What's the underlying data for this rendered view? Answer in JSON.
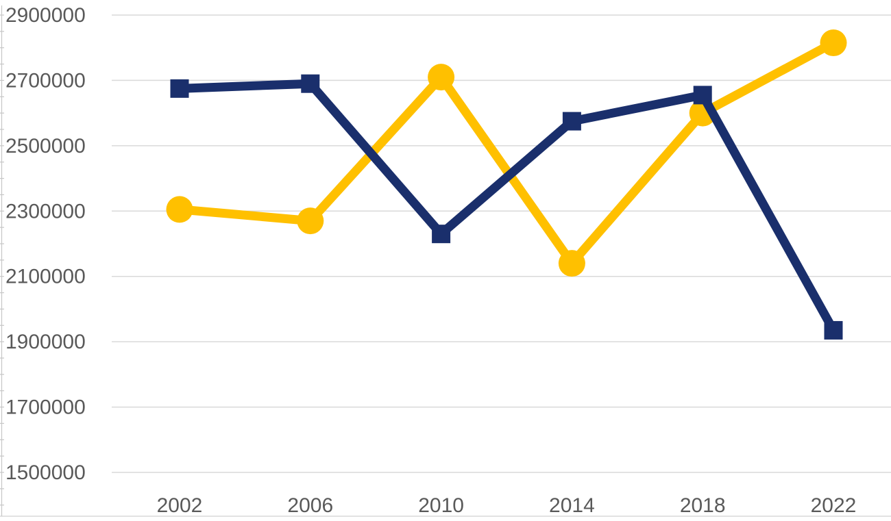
{
  "chart_data": {
    "type": "line",
    "title": "",
    "xlabel": "",
    "ylabel": "",
    "categories": [
      "2002",
      "2006",
      "2010",
      "2014",
      "2018",
      "2022"
    ],
    "series": [
      {
        "name": "gold",
        "color": "#FFC000",
        "marker": "circle",
        "line_width": 13,
        "values": [
          2305000,
          2270000,
          2710000,
          2140000,
          2600000,
          2815000
        ]
      },
      {
        "name": "navy",
        "color": "#1A2F6C",
        "marker": "square",
        "line_width": 13,
        "values": [
          2675000,
          2690000,
          2230000,
          2575000,
          2655000,
          1935000
        ]
      }
    ],
    "ylim": [
      1500000,
      2900000
    ],
    "y_major_step": 200000,
    "y_minor_step": 50000,
    "y_tick_labels": [
      "2900000",
      "2700000",
      "2500000",
      "2300000",
      "2100000",
      "1900000",
      "1700000",
      "1500000"
    ],
    "grid": "horizontal",
    "legend": "none",
    "colors": {
      "gridline": "#D9D9D9",
      "axis": "#C6C6C6",
      "tick_label": "#595959",
      "background": "#FFFFFF"
    }
  }
}
